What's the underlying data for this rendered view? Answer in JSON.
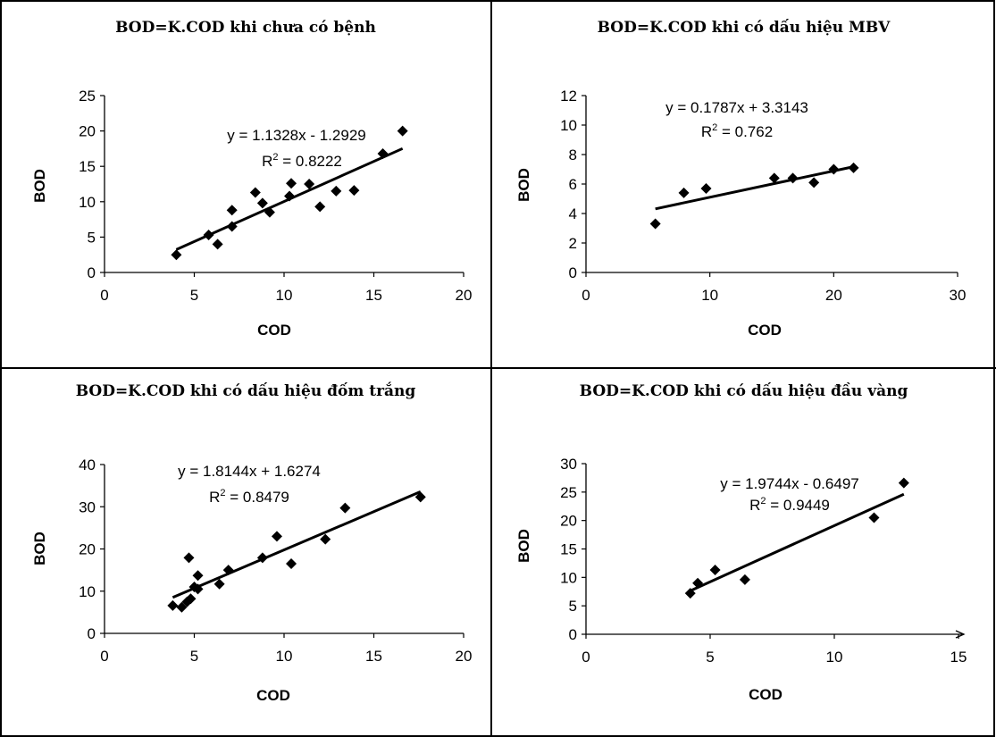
{
  "chart_data": [
    {
      "type": "scatter",
      "title": "BOD=K.COD khi chưa có bệnh",
      "xlabel": "COD",
      "ylabel": "BOD",
      "xlim": [
        0,
        20
      ],
      "ylim": [
        0,
        25
      ],
      "xticks": [
        "0",
        "5",
        "10",
        "15",
        "20"
      ],
      "yticks": [
        "0",
        "5",
        "10",
        "15",
        "20",
        "25"
      ],
      "points": [
        [
          4.0,
          2.5
        ],
        [
          5.8,
          5.3
        ],
        [
          6.3,
          4.0
        ],
        [
          7.1,
          8.8
        ],
        [
          7.1,
          6.5
        ],
        [
          8.4,
          11.3
        ],
        [
          8.8,
          9.8
        ],
        [
          9.2,
          8.5
        ],
        [
          10.3,
          10.8
        ],
        [
          10.4,
          12.6
        ],
        [
          11.4,
          12.5
        ],
        [
          12.0,
          9.3
        ],
        [
          12.9,
          11.5
        ],
        [
          13.9,
          11.6
        ],
        [
          15.5,
          16.8
        ],
        [
          16.6,
          20.0
        ]
      ],
      "trendline": {
        "slope": 1.1328,
        "intercept": -1.2929,
        "x_range": [
          4.0,
          16.6
        ]
      },
      "equation": "y = 1.1328x - 1.2929",
      "r2_label": "R",
      "r2_sup": "2",
      "r2_value": " = 0.8222",
      "legend": "none",
      "grid": false
    },
    {
      "type": "scatter",
      "title": "BOD=K.COD khi có dấu hiệu MBV",
      "xlabel": "COD",
      "ylabel": "BOD",
      "xlim": [
        0,
        30
      ],
      "ylim": [
        0,
        12
      ],
      "xticks": [
        "0",
        "10",
        "20",
        "30"
      ],
      "yticks": [
        "0",
        "2",
        "4",
        "6",
        "8",
        "10",
        "12"
      ],
      "points": [
        [
          5.6,
          3.3
        ],
        [
          7.9,
          5.4
        ],
        [
          9.7,
          5.7
        ],
        [
          15.2,
          6.4
        ],
        [
          16.7,
          6.4
        ],
        [
          18.4,
          6.1
        ],
        [
          20.0,
          7.0
        ],
        [
          21.6,
          7.1
        ]
      ],
      "trendline": {
        "slope": 0.1787,
        "intercept": 3.3143,
        "x_range": [
          5.6,
          21.6
        ]
      },
      "equation": "y = 0.1787x + 3.3143",
      "r2_label": "R",
      "r2_sup": "2",
      "r2_value": " = 0.762",
      "legend": "none",
      "grid": false
    },
    {
      "type": "scatter",
      "title": "BOD=K.COD khi có dấu hiệu đốm trắng",
      "xlabel": "COD",
      "ylabel": "BOD",
      "xlim": [
        0,
        20
      ],
      "ylim": [
        0,
        40
      ],
      "xticks": [
        "0",
        "5",
        "10",
        "15",
        "20"
      ],
      "yticks": [
        "0",
        "10",
        "20",
        "30",
        "40"
      ],
      "points": [
        [
          3.8,
          6.6
        ],
        [
          4.3,
          6.2
        ],
        [
          4.6,
          7.5
        ],
        [
          4.7,
          17.9
        ],
        [
          4.8,
          8.2
        ],
        [
          5.0,
          11.0
        ],
        [
          5.2,
          13.7
        ],
        [
          5.2,
          10.5
        ],
        [
          6.4,
          11.7
        ],
        [
          6.9,
          15.0
        ],
        [
          8.8,
          17.9
        ],
        [
          9.6,
          23.0
        ],
        [
          10.4,
          16.5
        ],
        [
          12.3,
          22.3
        ],
        [
          13.4,
          29.7
        ],
        [
          17.6,
          32.3
        ]
      ],
      "trendline": {
        "slope": 1.8144,
        "intercept": 1.6274,
        "x_range": [
          3.8,
          17.6
        ]
      },
      "equation": "y = 1.8144x + 1.6274",
      "r2_label": "R",
      "r2_sup": "2",
      "r2_value": " = 0.8479",
      "legend": "none",
      "grid": false
    },
    {
      "type": "scatter",
      "title": "BOD=K.COD khi có dấu hiệu đầu vàng",
      "xlabel": "COD",
      "ylabel": "BOD",
      "xlim": [
        0,
        15
      ],
      "ylim": [
        0,
        30
      ],
      "xticks": [
        "0",
        "5",
        "10",
        "15"
      ],
      "yticks": [
        "0",
        "5",
        "10",
        "15",
        "20",
        "25",
        "30"
      ],
      "points": [
        [
          4.2,
          7.2
        ],
        [
          4.5,
          9.0
        ],
        [
          5.2,
          11.3
        ],
        [
          6.4,
          9.6
        ],
        [
          11.6,
          20.5
        ],
        [
          12.8,
          26.6
        ]
      ],
      "trendline": {
        "slope": 1.9744,
        "intercept": -0.6497,
        "x_range": [
          4.2,
          12.8
        ]
      },
      "equation": "y = 1.9744x - 0.6497",
      "r2_label": "R",
      "r2_sup": "2",
      "r2_value": " = 0.9449",
      "legend": "none",
      "grid": false
    }
  ]
}
